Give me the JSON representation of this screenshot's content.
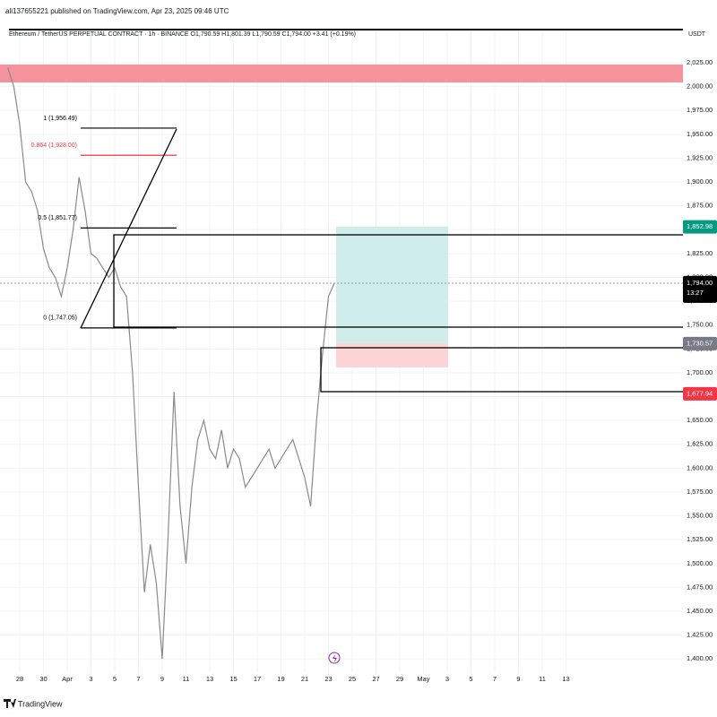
{
  "header": {
    "publisher": "ali137655221 published on TradingView.com, Apr 23, 2025 09:46 UTC",
    "logo": "TradingView"
  },
  "chart_data": {
    "type": "line",
    "title": "Ethereum / TetherUS PERPETUAL CONTRACT · 1h · BINANCE  O1,790.59  H1,801.39  L1,790.59  C1,794.00  +3.41 (+0.19%)",
    "y_unit": "USDT",
    "series": [
      {
        "color": "#8a8a8a",
        "values": [
          2020,
          2000,
          1960,
          1900,
          1890,
          1870,
          1830,
          1810,
          1800,
          1780,
          1810,
          1850,
          1905,
          1870,
          1825,
          1820,
          1810,
          1800,
          1810,
          1790,
          1780,
          1700,
          1580,
          1470,
          1520,
          1480,
          1400,
          1530,
          1680,
          1560,
          1500,
          1580,
          1630,
          1650,
          1620,
          1610,
          1640,
          1600,
          1620,
          1610,
          1580,
          1590,
          1600,
          1610,
          1620,
          1600,
          1610,
          1620,
          1630,
          1610,
          1590,
          1560,
          1650,
          1720,
          1780,
          1794
        ]
      }
    ],
    "xlim": [
      -1.32,
      113.7
    ],
    "xticks": [
      {
        "value": 2,
        "label": "28"
      },
      {
        "value": 6,
        "label": "30"
      },
      {
        "value": 10,
        "label": "Apr"
      },
      {
        "value": 14,
        "label": "3"
      },
      {
        "value": 18,
        "label": "5"
      },
      {
        "value": 22,
        "label": "7"
      },
      {
        "value": 26,
        "label": "9"
      },
      {
        "value": 30,
        "label": "11"
      },
      {
        "value": 34,
        "label": "13"
      },
      {
        "value": 38,
        "label": "15"
      },
      {
        "value": 42,
        "label": "17"
      },
      {
        "value": 46,
        "label": "19"
      },
      {
        "value": 50,
        "label": "21"
      },
      {
        "value": 54,
        "label": "23"
      },
      {
        "value": 58,
        "label": "25"
      },
      {
        "value": 62,
        "label": "27"
      },
      {
        "value": 66,
        "label": "29"
      },
      {
        "value": 70,
        "label": "May"
      },
      {
        "value": 74,
        "label": "3"
      },
      {
        "value": 78,
        "label": "5"
      },
      {
        "value": 82,
        "label": "7"
      },
      {
        "value": 86,
        "label": "9"
      },
      {
        "value": 90,
        "label": "11"
      },
      {
        "value": 94,
        "label": "13"
      }
    ],
    "ylim": [
      1386.1,
      2059.8
    ],
    "yticks": [
      {
        "value": 1400,
        "label": "1,400.00"
      },
      {
        "value": 1425,
        "label": "1,425.00"
      },
      {
        "value": 1450,
        "label": "1,450.00"
      },
      {
        "value": 1475,
        "label": "1,475.00"
      },
      {
        "value": 1500,
        "label": "1,500.00"
      },
      {
        "value": 1525,
        "label": "1,525.00"
      },
      {
        "value": 1550,
        "label": "1,550.00"
      },
      {
        "value": 1575,
        "label": "1,575.00"
      },
      {
        "value": 1600,
        "label": "1,600.00"
      },
      {
        "value": 1625,
        "label": "1,625.00"
      },
      {
        "value": 1650,
        "label": "1,650.00"
      },
      {
        "value": 1675,
        "label": "1,675.00"
      },
      {
        "value": 1700,
        "label": "1,700.00"
      },
      {
        "value": 1725,
        "label": "1,725.00"
      },
      {
        "value": 1750,
        "label": "1,750.00"
      },
      {
        "value": 1775,
        "label": "1,775.00"
      },
      {
        "value": 1800,
        "label": "1,800.00"
      },
      {
        "value": 1825,
        "label": "1,825.00"
      },
      {
        "value": 1850,
        "label": "1,850.00"
      },
      {
        "value": 1875,
        "label": "1,875.00"
      },
      {
        "value": 1900,
        "label": "1,900.00"
      },
      {
        "value": 1925,
        "label": "1,925.00"
      },
      {
        "value": 1950,
        "label": "1,950.00"
      },
      {
        "value": 1975,
        "label": "1,975.00"
      },
      {
        "value": 2000,
        "label": "2,000.00"
      },
      {
        "value": 2025,
        "label": "2,025.00"
      }
    ],
    "grid": true,
    "fib_levels": [
      {
        "value": 1956.49,
        "label": "1 (1,956.49)",
        "color": "#000000"
      },
      {
        "value": 1928.0,
        "label": "0.864 (1,928.00)",
        "color": "#f23645"
      },
      {
        "value": 1851.77,
        "label": "0.5 (1,851.77)",
        "color": "#000000"
      },
      {
        "value": 1747.05,
        "label": "0 (1,747.05)",
        "color": "#000000"
      }
    ],
    "price_labels": [
      {
        "value": 1852.98,
        "label": "1,852.98",
        "color": "#089981"
      },
      {
        "value": 1794.0,
        "label": "1,794.00",
        "time": "13:27",
        "color": "#000000"
      },
      {
        "value": 1730.57,
        "label": "1,730.57",
        "color": "#787b86"
      },
      {
        "value": 1677.94,
        "label": "1,677.94",
        "color": "#f23645"
      }
    ]
  }
}
